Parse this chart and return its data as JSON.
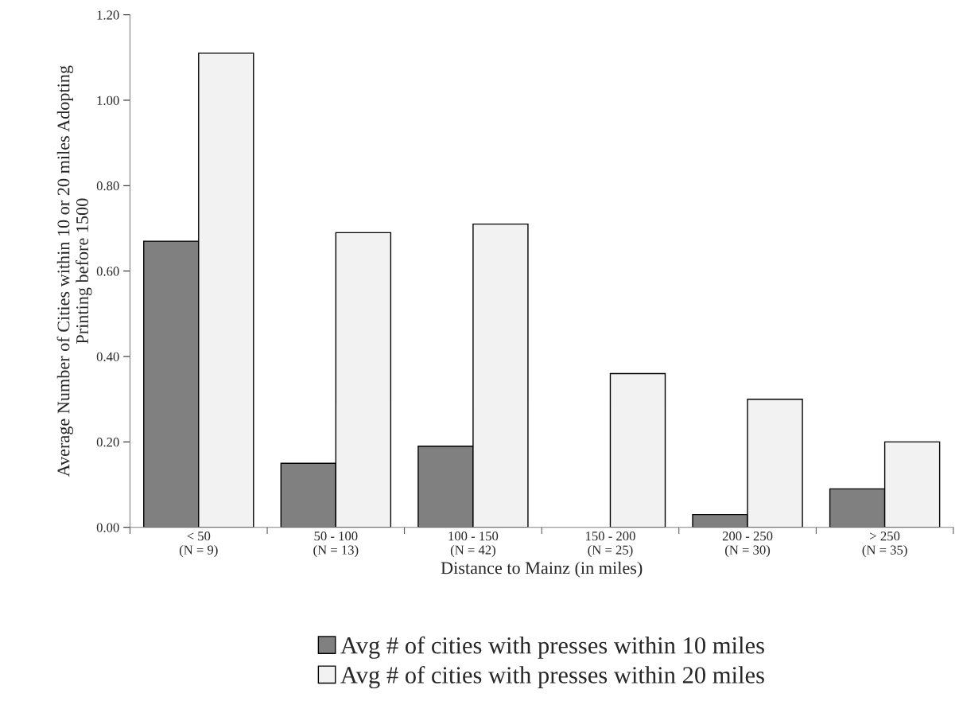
{
  "chart_data": {
    "type": "bar",
    "categories": [
      "< 50\n(N = 9)",
      "50 - 100\n(N = 13)",
      "100 - 150\n(N = 42)",
      "150 - 200\n(N = 25)",
      "200 - 250\n(N = 30)",
      "> 250\n(N = 35)"
    ],
    "series": [
      {
        "name": "Avg # of cities with presses within 10 miles",
        "color": "#808080",
        "values": [
          0.67,
          0.15,
          0.19,
          0,
          0.03,
          0.09
        ]
      },
      {
        "name": "Avg # of cities with presses within 20 miles",
        "color": "#f2f2f2",
        "values": [
          1.11,
          0.69,
          0.71,
          0.36,
          0.3,
          0.2
        ]
      }
    ],
    "xlabel": "Distance to Mainz (in miles)",
    "ylabel": "Average Number of Cities within 10 or 20 miles Adopting\nPrinting before 1500",
    "ylim": [
      0,
      1.2
    ],
    "yticks": [
      {
        "value": 0,
        "label": "0.00"
      },
      {
        "value": 0.2,
        "label": "0.20"
      },
      {
        "value": 0.4,
        "label": "0.40"
      },
      {
        "value": 0.6,
        "label": "0.60"
      },
      {
        "value": 0.8,
        "label": "0.80"
      },
      {
        "value": 1.0,
        "label": "1.00"
      },
      {
        "value": 1.2,
        "label": "1.20"
      }
    ],
    "grid": false,
    "legend": "bottom"
  }
}
